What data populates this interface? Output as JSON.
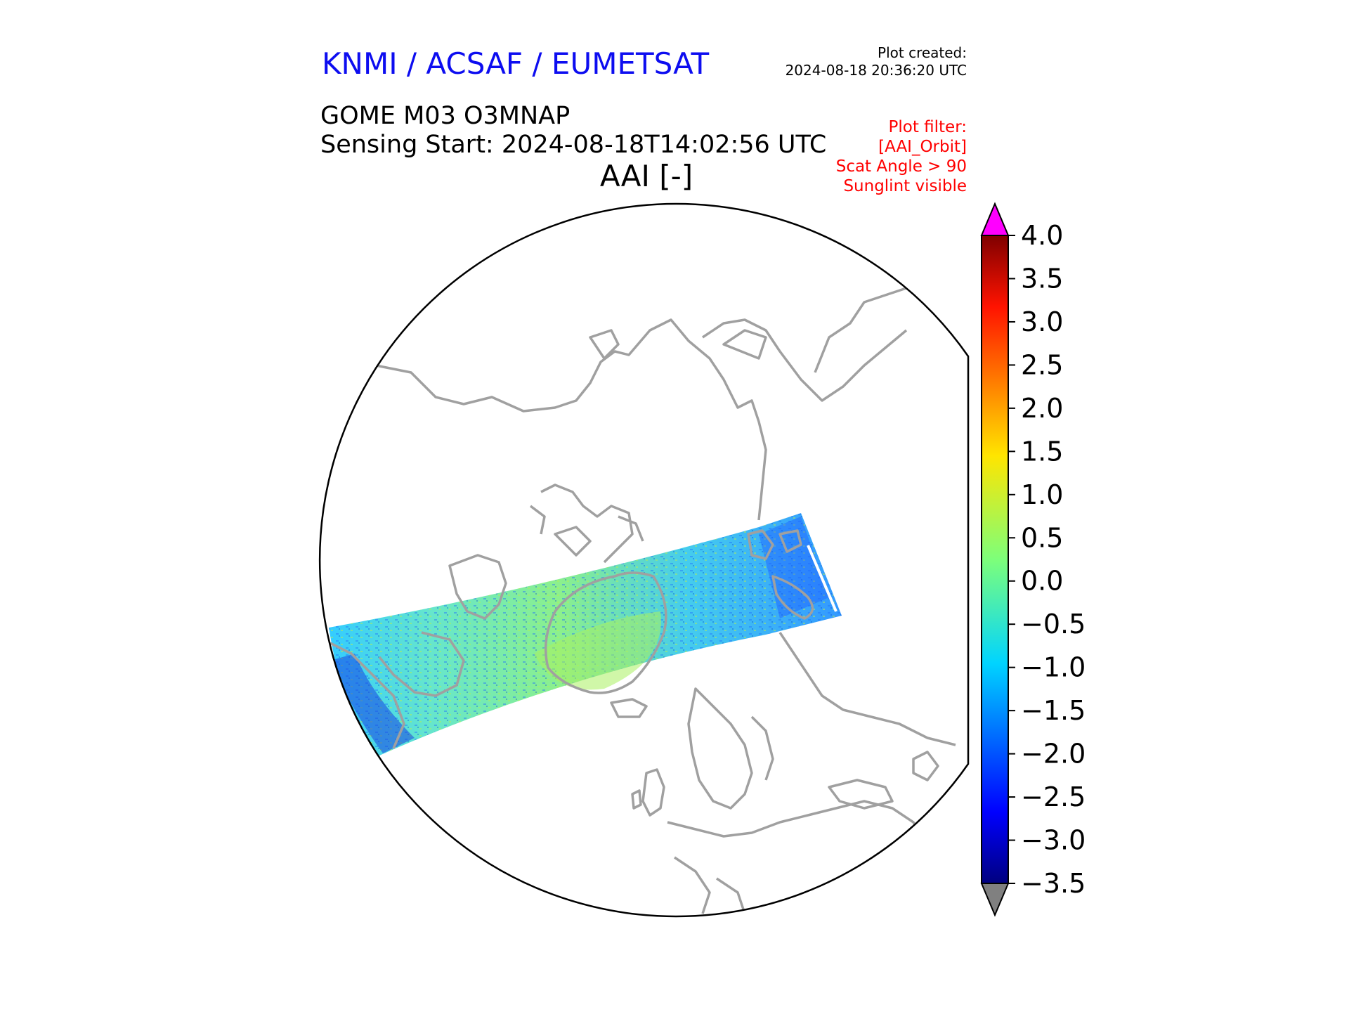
{
  "header": {
    "organisation": "KNMI / ACSAF / EUMETSAT",
    "plot_created_label": "Plot created:",
    "plot_created_time": "2024-08-18 20:36:20 UTC",
    "product": "GOME M03 O3MNAP",
    "sensing_start": "Sensing Start: 2024-08-18T14:02:56 UTC",
    "variable": "AAI [-]"
  },
  "plot_filter": [
    "Plot filter:",
    "[AAI_Orbit]",
    "Scat Angle > 90",
    "Sunglint visible"
  ],
  "colorbar": {
    "min": -3.5,
    "max": 4.0,
    "tick_labels": [
      "4.0",
      "3.5",
      "3.0",
      "2.5",
      "2.0",
      "1.5",
      "1.0",
      "0.5",
      "0.0",
      "−0.5",
      "−1.0",
      "−1.5",
      "−2.0",
      "−2.5",
      "−3.0",
      "−3.5"
    ],
    "over_color": "#ff00ff",
    "under_color": "#808080",
    "colormap": "jet"
  },
  "map": {
    "projection": "north polar stereographic",
    "coastline_color": "#a0a0a0",
    "border_color": "#000000"
  }
}
